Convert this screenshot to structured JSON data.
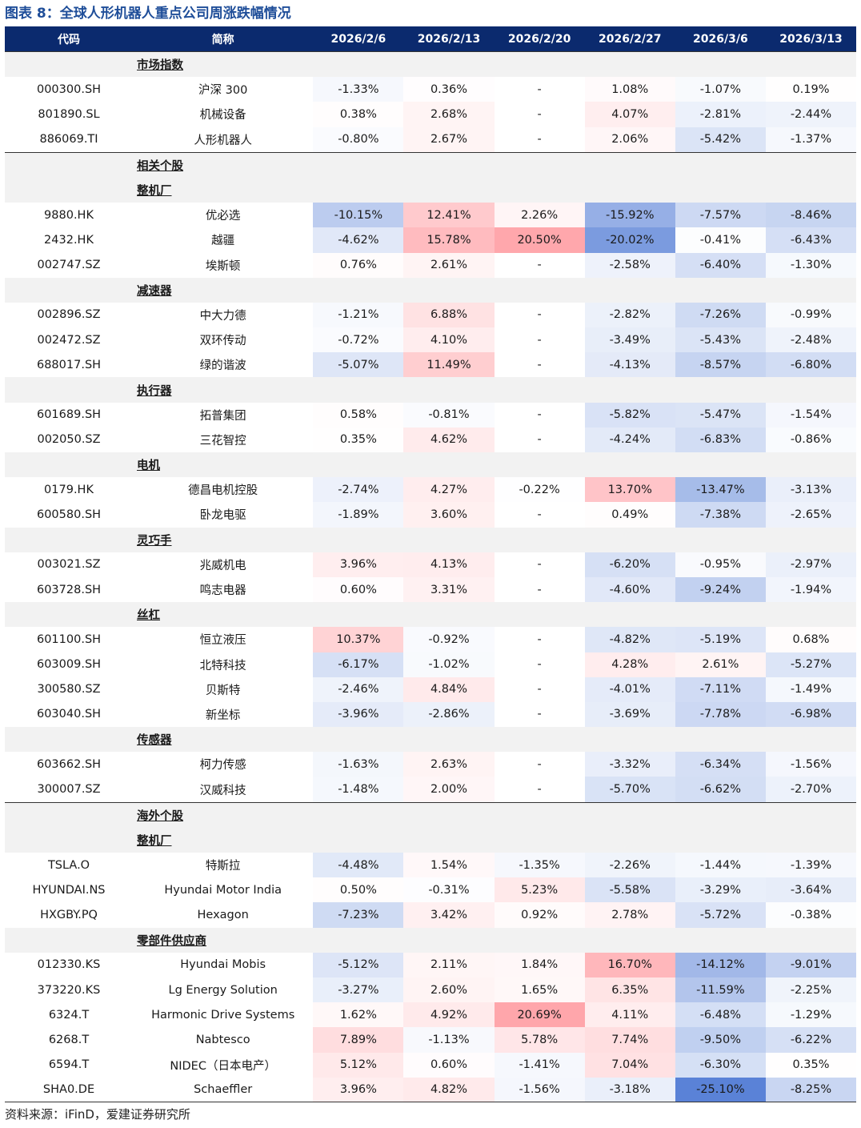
{
  "title": "图表 8：全球人形机器人重点公司周涨跌幅情况",
  "source": "资料来源：iFinD，爱建证券研究所",
  "columns": [
    "代码",
    "简称",
    "2026/2/6",
    "2026/2/13",
    "2026/2/20",
    "2026/2/27",
    "2026/3/6",
    "2026/3/13"
  ],
  "sections": [
    {
      "label": "市场指数",
      "level": "major",
      "rows": [
        {
          "code": "000300.SH",
          "name": "沪深 300",
          "values": [
            "-1.33%",
            "0.36%",
            "-",
            "1.08%",
            "-1.07%",
            "0.19%"
          ]
        },
        {
          "code": "801890.SL",
          "name": "机械设备",
          "values": [
            "0.38%",
            "2.68%",
            "-",
            "4.07%",
            "-2.81%",
            "-2.44%"
          ]
        },
        {
          "code": "886069.TI",
          "name": "人形机器人",
          "values": [
            "-0.80%",
            "2.67%",
            "-",
            "2.06%",
            "-5.42%",
            "-1.37%"
          ]
        }
      ]
    },
    {
      "label": "相关个股",
      "level": "major",
      "rows": []
    },
    {
      "label": "整机厂",
      "level": "minor",
      "rows": [
        {
          "code": "9880.HK",
          "name": "优必选",
          "values": [
            "-10.15%",
            "12.41%",
            "2.26%",
            "-15.92%",
            "-7.57%",
            "-8.46%"
          ]
        },
        {
          "code": "2432.HK",
          "name": "越疆",
          "values": [
            "-4.62%",
            "15.78%",
            "20.50%",
            "-20.02%",
            "-0.41%",
            "-6.43%"
          ]
        },
        {
          "code": "002747.SZ",
          "name": "埃斯顿",
          "values": [
            "0.76%",
            "2.61%",
            "-",
            "-2.58%",
            "-6.40%",
            "-1.30%"
          ]
        }
      ]
    },
    {
      "label": "减速器",
      "level": "minor",
      "rows": [
        {
          "code": "002896.SZ",
          "name": "中大力德",
          "values": [
            "-1.21%",
            "6.88%",
            "-",
            "-2.82%",
            "-7.26%",
            "-0.99%"
          ]
        },
        {
          "code": "002472.SZ",
          "name": "双环传动",
          "values": [
            "-0.72%",
            "4.10%",
            "-",
            "-3.49%",
            "-5.43%",
            "-2.48%"
          ]
        },
        {
          "code": "688017.SH",
          "name": "绿的谐波",
          "values": [
            "-5.07%",
            "11.49%",
            "-",
            "-4.13%",
            "-8.57%",
            "-6.80%"
          ]
        }
      ]
    },
    {
      "label": "执行器",
      "level": "minor",
      "rows": [
        {
          "code": "601689.SH",
          "name": "拓普集团",
          "values": [
            "0.58%",
            "-0.81%",
            "-",
            "-5.82%",
            "-5.47%",
            "-1.54%"
          ]
        },
        {
          "code": "002050.SZ",
          "name": "三花智控",
          "values": [
            "0.35%",
            "4.62%",
            "-",
            "-4.24%",
            "-6.83%",
            "-0.86%"
          ]
        }
      ]
    },
    {
      "label": "电机",
      "level": "minor",
      "rows": [
        {
          "code": "0179.HK",
          "name": "德昌电机控股",
          "values": [
            "-2.74%",
            "4.27%",
            "-0.22%",
            "13.70%",
            "-13.47%",
            "-3.13%"
          ]
        },
        {
          "code": "600580.SH",
          "name": "卧龙电驱",
          "values": [
            "-1.89%",
            "3.60%",
            "-",
            "0.49%",
            "-7.38%",
            "-2.65%"
          ]
        }
      ]
    },
    {
      "label": "灵巧手",
      "level": "minor",
      "rows": [
        {
          "code": "003021.SZ",
          "name": "兆威机电",
          "values": [
            "3.96%",
            "4.13%",
            "-",
            "-6.20%",
            "-0.95%",
            "-2.97%"
          ]
        },
        {
          "code": "603728.SH",
          "name": "鸣志电器",
          "values": [
            "0.60%",
            "3.31%",
            "-",
            "-4.60%",
            "-9.24%",
            "-1.94%"
          ]
        }
      ]
    },
    {
      "label": "丝杠",
      "level": "minor",
      "rows": [
        {
          "code": "601100.SH",
          "name": "恒立液压",
          "values": [
            "10.37%",
            "-0.92%",
            "-",
            "-4.82%",
            "-5.19%",
            "0.68%"
          ]
        },
        {
          "code": "603009.SH",
          "name": "北特科技",
          "values": [
            "-6.17%",
            "-1.02%",
            "-",
            "4.28%",
            "2.61%",
            "-5.27%"
          ]
        },
        {
          "code": "300580.SZ",
          "name": "贝斯特",
          "values": [
            "-2.46%",
            "4.84%",
            "-",
            "-4.01%",
            "-7.11%",
            "-1.49%"
          ]
        },
        {
          "code": "603040.SH",
          "name": "新坐标",
          "values": [
            "-3.96%",
            "-2.86%",
            "-",
            "-3.69%",
            "-7.78%",
            "-6.98%"
          ]
        }
      ]
    },
    {
      "label": "传感器",
      "level": "minor",
      "rows": [
        {
          "code": "603662.SH",
          "name": "柯力传感",
          "values": [
            "-1.63%",
            "2.63%",
            "-",
            "-3.32%",
            "-6.34%",
            "-1.56%"
          ]
        },
        {
          "code": "300007.SZ",
          "name": "汉威科技",
          "values": [
            "-1.48%",
            "2.00%",
            "-",
            "-5.70%",
            "-6.62%",
            "-2.70%"
          ]
        }
      ]
    },
    {
      "label": "海外个股",
      "level": "major",
      "rows": []
    },
    {
      "label": "整机厂",
      "level": "minor",
      "rows": [
        {
          "code": "TSLA.O",
          "name": "特斯拉",
          "values": [
            "-4.48%",
            "1.54%",
            "-1.35%",
            "-2.26%",
            "-1.44%",
            "-1.39%"
          ]
        },
        {
          "code": "HYUNDAI.NS",
          "name": "Hyundai Motor India",
          "values": [
            "0.50%",
            "-0.31%",
            "5.23%",
            "-5.58%",
            "-3.29%",
            "-3.64%"
          ]
        },
        {
          "code": "HXGBY.PQ",
          "name": "Hexagon",
          "values": [
            "-7.23%",
            "3.42%",
            "0.92%",
            "2.78%",
            "-5.72%",
            "-0.38%"
          ]
        }
      ]
    },
    {
      "label": "零部件供应商",
      "level": "minor",
      "rows": [
        {
          "code": "012330.KS",
          "name": "Hyundai Mobis",
          "values": [
            "-5.12%",
            "2.11%",
            "1.84%",
            "16.70%",
            "-14.12%",
            "-9.01%"
          ]
        },
        {
          "code": "373220.KS",
          "name": "Lg Energy Solution",
          "values": [
            "-3.27%",
            "2.60%",
            "1.65%",
            "6.35%",
            "-11.59%",
            "-2.25%"
          ]
        },
        {
          "code": "6324.T",
          "name": "Harmonic Drive Systems",
          "values": [
            "1.62%",
            "4.92%",
            "20.69%",
            "4.11%",
            "-6.48%",
            "-1.29%"
          ]
        },
        {
          "code": "6268.T",
          "name": "Nabtesco",
          "values": [
            "7.89%",
            "-1.13%",
            "5.78%",
            "7.74%",
            "-9.50%",
            "-6.22%"
          ]
        },
        {
          "code": "6594.T",
          "name": "NIDEC（日本电产）",
          "values": [
            "5.12%",
            "0.60%",
            "-1.41%",
            "7.04%",
            "-6.30%",
            "0.35%"
          ]
        },
        {
          "code": "SHA0.DE",
          "name": "Schaeffler",
          "values": [
            "3.96%",
            "4.82%",
            "-1.56%",
            "-3.18%",
            "-25.10%",
            "-8.25%"
          ]
        }
      ]
    }
  ]
}
